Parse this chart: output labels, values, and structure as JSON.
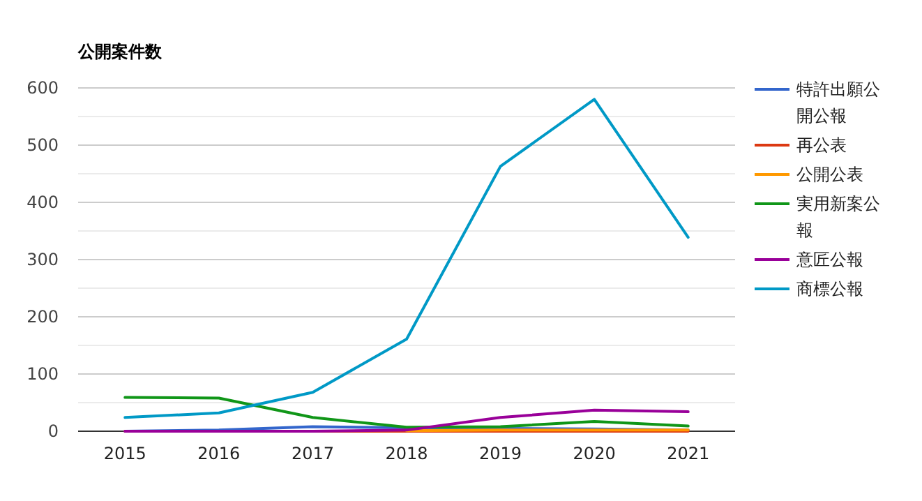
{
  "chart_data": {
    "type": "line",
    "title": "公開案件数",
    "categories": [
      "2015",
      "2016",
      "2017",
      "2018",
      "2019",
      "2020",
      "2021"
    ],
    "series": [
      {
        "name": "特許出願公開公報",
        "color": "#3366cc",
        "values": [
          0,
          2,
          8,
          6,
          5,
          4,
          2
        ]
      },
      {
        "name": "再公表",
        "color": "#dc3912",
        "values": [
          0,
          0,
          0,
          0,
          0,
          0,
          0
        ]
      },
      {
        "name": "公開公表",
        "color": "#ff9900",
        "values": [
          null,
          null,
          null,
          1,
          2,
          2,
          2
        ]
      },
      {
        "name": "実用新案公報",
        "color": "#109618",
        "values": [
          59,
          58,
          24,
          7,
          8,
          17,
          9
        ]
      },
      {
        "name": "意匠公報",
        "color": "#990099",
        "values": [
          0,
          0,
          0,
          2,
          24,
          37,
          34
        ]
      },
      {
        "name": "商標公報",
        "color": "#0099c6",
        "values": [
          24,
          32,
          68,
          161,
          463,
          580,
          339
        ]
      }
    ],
    "ylim": [
      0,
      600
    ],
    "yticks": [
      0,
      {
        "value": 50,
        "label": null
      },
      100,
      {
        "value": 150,
        "label": null
      },
      200,
      {
        "value": 250,
        "label": null
      },
      300,
      {
        "value": 350,
        "label": null
      },
      400,
      {
        "value": 450,
        "label": null
      },
      500,
      {
        "value": 550,
        "label": null
      },
      600
    ],
    "grid": "y",
    "legend": "right",
    "marker": "none",
    "line_style": "solid"
  }
}
